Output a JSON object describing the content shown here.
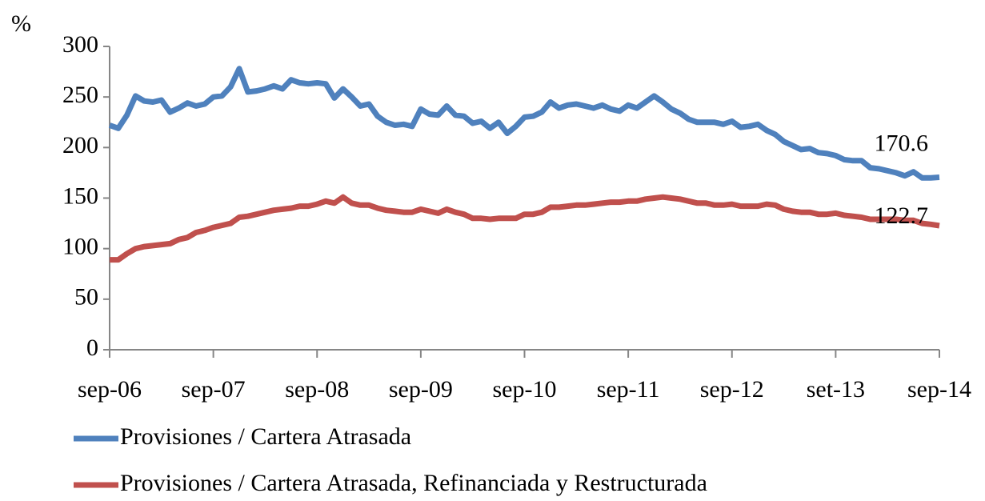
{
  "chart_data": {
    "type": "line",
    "y_label": "%",
    "categories": [
      "sep-06",
      null,
      null,
      null,
      null,
      null,
      null,
      null,
      null,
      null,
      null,
      null,
      "sep-07",
      null,
      null,
      null,
      null,
      null,
      null,
      null,
      null,
      null,
      null,
      null,
      "sep-08",
      null,
      null,
      null,
      null,
      null,
      null,
      null,
      null,
      null,
      null,
      null,
      "sep-09",
      null,
      null,
      null,
      null,
      null,
      null,
      null,
      null,
      null,
      null,
      null,
      "sep-10",
      null,
      null,
      null,
      null,
      null,
      null,
      null,
      null,
      null,
      null,
      null,
      "sep-11",
      null,
      null,
      null,
      null,
      null,
      null,
      null,
      null,
      null,
      null,
      null,
      "sep-12",
      null,
      null,
      null,
      null,
      null,
      null,
      null,
      null,
      null,
      null,
      null,
      "set-13",
      null,
      null,
      null,
      null,
      null,
      null,
      null,
      null,
      null,
      null,
      null,
      "sep-14"
    ],
    "series": [
      {
        "name": "Provisiones / Cartera Atrasada",
        "color": "#4f81bd",
        "values": [
          222,
          219,
          232,
          251,
          246,
          245,
          247,
          235,
          239,
          244,
          241,
          243,
          250,
          251,
          260,
          278,
          255,
          256,
          258,
          261,
          258,
          267,
          264,
          263,
          264,
          263,
          249,
          258,
          250,
          241,
          243,
          231,
          225,
          222,
          223,
          221,
          238,
          233,
          232,
          241,
          232,
          231,
          224,
          226,
          219,
          225,
          214,
          221,
          230,
          231,
          235,
          245,
          239,
          242,
          243,
          241,
          239,
          242,
          238,
          236,
          242,
          239,
          245,
          251,
          245,
          238,
          234,
          228,
          225,
          225,
          225,
          223,
          226,
          220,
          221,
          223,
          217,
          213,
          206,
          202,
          198,
          199,
          195,
          194,
          192,
          188,
          187,
          187,
          180,
          179,
          177,
          175,
          172,
          176,
          170,
          170,
          170.6
        ]
      },
      {
        "name": "Provisiones / Cartera Atrasada, Refinanciada y Restructurada",
        "color": "#c0504d",
        "values": [
          89,
          89,
          95,
          100,
          102,
          103,
          104,
          105,
          109,
          111,
          116,
          118,
          121,
          123,
          125,
          131,
          132,
          134,
          136,
          138,
          139,
          140,
          142,
          142,
          144,
          147,
          145,
          151,
          145,
          143,
          143,
          140,
          138,
          137,
          136,
          136,
          139,
          137,
          135,
          139,
          136,
          134,
          130,
          130,
          129,
          130,
          130,
          130,
          134,
          134,
          136,
          141,
          141,
          142,
          143,
          143,
          144,
          145,
          146,
          146,
          147,
          147,
          149,
          150,
          151,
          150,
          149,
          147,
          145,
          145,
          143,
          143,
          144,
          142,
          142,
          142,
          144,
          143,
          139,
          137,
          136,
          136,
          134,
          134,
          135,
          133,
          132,
          131,
          129,
          129,
          129,
          129,
          128,
          128,
          125,
          124,
          122.7
        ]
      }
    ],
    "ylim": [
      0,
      300
    ],
    "yticks": [
      0,
      50,
      100,
      150,
      200,
      250,
      300
    ],
    "grid": false
  }
}
